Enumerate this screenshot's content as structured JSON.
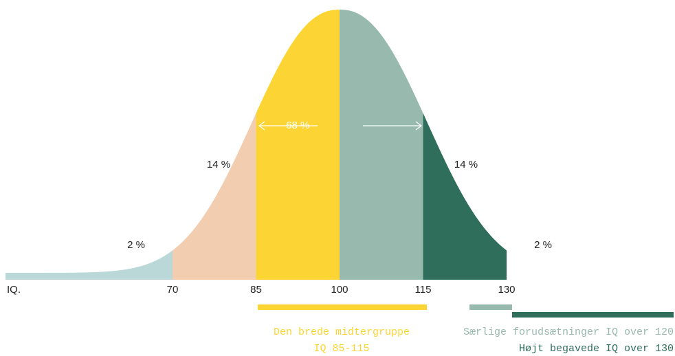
{
  "chart_data": {
    "type": "bell",
    "x_label": "IQ.",
    "xlim": [
      40,
      160
    ],
    "xticks": [
      70,
      85,
      100,
      115,
      130
    ],
    "regions": {
      "values": [
        2,
        14,
        68,
        14,
        2
      ],
      "value_labels": [
        "2 %",
        "14 %",
        "68 %",
        "14 %",
        "2 %"
      ],
      "colors": [
        "#bad8d8",
        "#f2cdb0",
        "#fcd535",
        "#98b9ae",
        "#2e6e5a"
      ]
    },
    "legend": [
      {
        "lines": [
          "Den brede midtergruppe",
          "IQ 85-115"
        ],
        "color": "#fcd535"
      },
      {
        "lines": [
          "Særlige forudsætninger IQ over 120"
        ],
        "color": "#98b9ae"
      },
      {
        "lines": [
          "Højt begavede IQ over 130"
        ],
        "color": "#2e6e5a"
      }
    ]
  }
}
